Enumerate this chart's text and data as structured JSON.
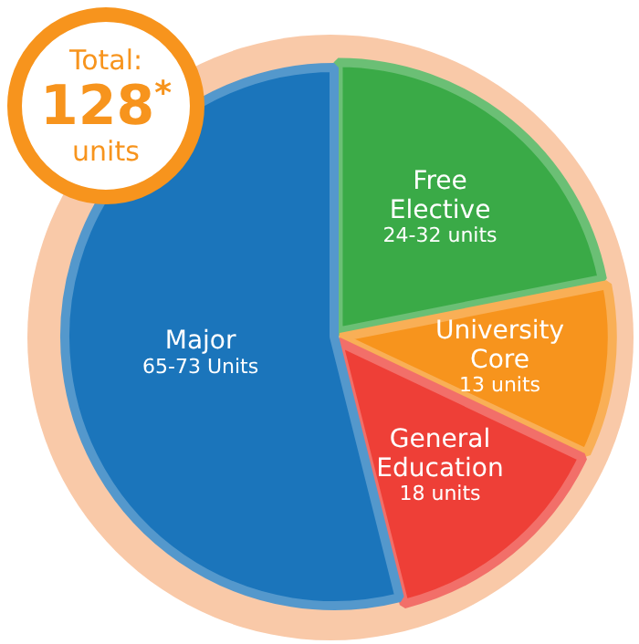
{
  "chart_data": {
    "type": "pie",
    "categories": [
      "Free Elective",
      "University Core",
      "General Education",
      "Major"
    ],
    "values": [
      28,
      13,
      18,
      69
    ],
    "colors": [
      "#3aaa47",
      "#f7941d",
      "#ee3f37",
      "#1b75bb"
    ],
    "value_labels": [
      "24-32 units",
      "13 units",
      "18 units",
      "65-73 Units"
    ],
    "annotations": [
      "Total: 128$^{*}$ units"
    ],
    "legend": false
  }
}
